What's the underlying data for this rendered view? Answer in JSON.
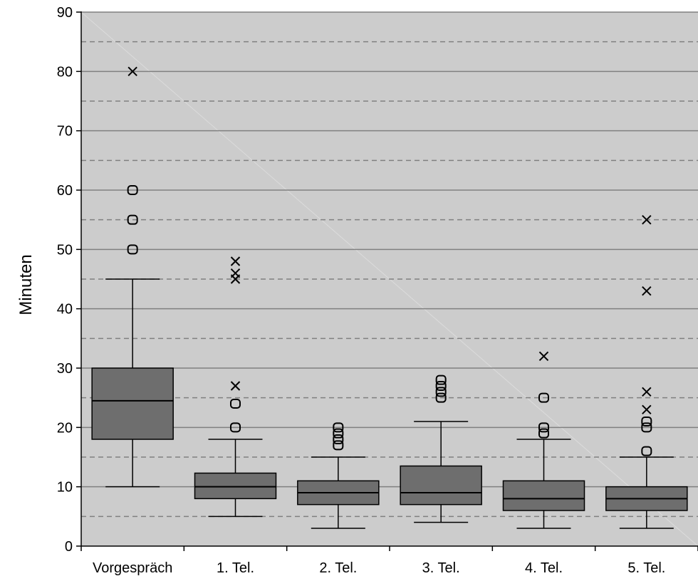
{
  "chart_data": {
    "type": "box",
    "ylabel": "Minuten",
    "ylim": [
      0,
      90
    ],
    "y_ticks": [
      0,
      10,
      20,
      30,
      40,
      50,
      60,
      70,
      80,
      90
    ],
    "grid": "on",
    "categories": [
      "Vorgespräch",
      "1. Tel.",
      "2. Tel.",
      "3. Tel.",
      "4. Tel.",
      "5. Tel."
    ],
    "boxes": [
      {
        "category": "Vorgespräch",
        "whisker_low": 10,
        "q1": 18,
        "median": 24.5,
        "q3": 30,
        "whisker_high": 45,
        "outliers": [
          50,
          55,
          60
        ],
        "extremes": [
          80
        ]
      },
      {
        "category": "1. Tel.",
        "whisker_low": 5,
        "q1": 8,
        "median": 10,
        "q3": 12.3,
        "whisker_high": 18,
        "outliers": [
          20,
          24
        ],
        "extremes": [
          27,
          45,
          46,
          48
        ]
      },
      {
        "category": "2. Tel.",
        "whisker_low": 3,
        "q1": 7,
        "median": 9,
        "q3": 11,
        "whisker_high": 15,
        "outliers": [
          17,
          18,
          19,
          20
        ],
        "extremes": []
      },
      {
        "category": "3. Tel.",
        "whisker_low": 4,
        "q1": 7,
        "median": 9,
        "q3": 13.5,
        "whisker_high": 21,
        "outliers": [
          25,
          26,
          27,
          28
        ],
        "extremes": []
      },
      {
        "category": "4. Tel.",
        "whisker_low": 3,
        "q1": 6,
        "median": 8,
        "q3": 11,
        "whisker_high": 18,
        "outliers": [
          19,
          20,
          25
        ],
        "extremes": [
          32
        ]
      },
      {
        "category": "5. Tel.",
        "whisker_low": 3,
        "q1": 6,
        "median": 8,
        "q3": 10,
        "whisker_high": 15,
        "outliers": [
          16,
          20,
          21
        ],
        "extremes": [
          23,
          26,
          43,
          55
        ]
      }
    ],
    "colors": {
      "plot_background": "#cccccc",
      "box_fill": "#6e6e6e",
      "gridline": "#808080"
    }
  }
}
